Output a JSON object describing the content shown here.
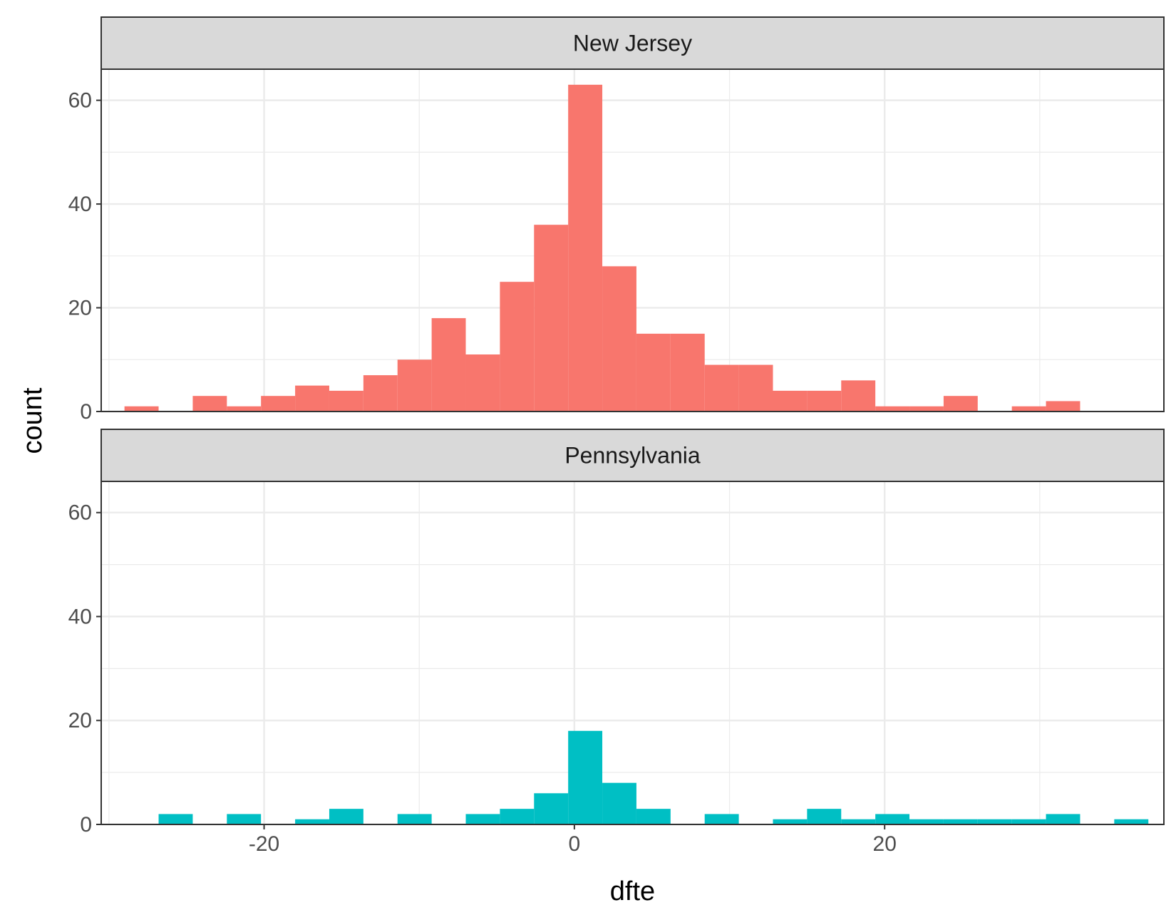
{
  "chart_data": {
    "type": "bar",
    "subtype": "faceted-histogram",
    "xlabel": "dfte",
    "ylabel": "count",
    "xlim": [
      -30.5,
      38
    ],
    "ylim": [
      0,
      66
    ],
    "x_ticks": [
      -20,
      0,
      20
    ],
    "x_tick_labels": [
      "-20",
      "0",
      "20"
    ],
    "y_ticks": [
      0,
      20,
      40,
      60
    ],
    "y_tick_labels": [
      "0",
      "20",
      "40",
      "60"
    ],
    "grid": true,
    "legend": "none",
    "bin_width": 2.2,
    "bin_starts": [
      -29.0,
      -26.8,
      -24.6,
      -22.4,
      -20.2,
      -18.0,
      -15.8,
      -13.6,
      -11.4,
      -9.2,
      -7.0,
      -4.8,
      -2.6,
      -0.4,
      1.8,
      4.0,
      6.2,
      8.4,
      10.6,
      12.8,
      15.0,
      17.2,
      19.4,
      21.6,
      23.8,
      26.0,
      28.2,
      30.4,
      32.6,
      34.8
    ],
    "panels": [
      {
        "name": "New Jersey",
        "color": "#F8766D",
        "counts": [
          1,
          0,
          3,
          1,
          3,
          5,
          4,
          7,
          10,
          18,
          11,
          25,
          36,
          63,
          28,
          15,
          15,
          9,
          9,
          4,
          4,
          6,
          1,
          1,
          3,
          0,
          1,
          2,
          0,
          0
        ]
      },
      {
        "name": "Pennsylvania",
        "color": "#00BFC4",
        "counts": [
          0,
          2,
          0,
          2,
          0,
          1,
          3,
          0,
          2,
          0,
          2,
          3,
          6,
          18,
          8,
          3,
          0,
          2,
          0,
          1,
          3,
          1,
          2,
          1,
          1,
          1,
          1,
          2,
          0,
          1
        ]
      }
    ]
  }
}
